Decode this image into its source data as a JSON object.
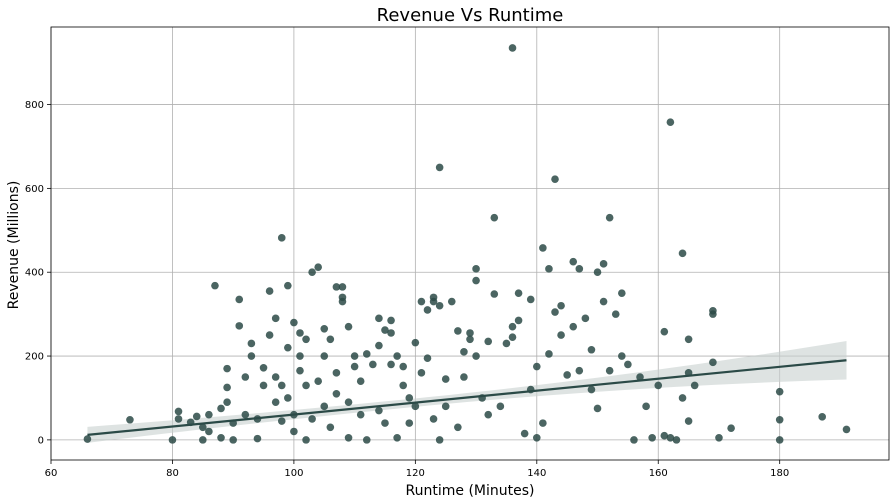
{
  "chart_data": {
    "type": "scatter",
    "title": "Revenue Vs Runtime",
    "xlabel": "Runtime (Minutes)",
    "ylabel": "Revenue (Millions)",
    "xlim": [
      60,
      198
    ],
    "ylim": [
      -48,
      985
    ],
    "xticks": [
      60,
      80,
      100,
      120,
      140,
      160,
      180
    ],
    "yticks": [
      0,
      200,
      400,
      600,
      800
    ],
    "grid": true,
    "point_color": "#2b4a47",
    "line_color": "#2b4a47",
    "band_color": "#c8d0cf",
    "regression": {
      "x": [
        66,
        191
      ],
      "y": [
        12,
        190
      ],
      "ci_halfwidth": [
        18,
        36
      ]
    },
    "series": [
      {
        "points": [
          [
            66,
            2
          ],
          [
            73,
            48
          ],
          [
            80,
            0
          ],
          [
            81,
            68
          ],
          [
            81,
            50
          ],
          [
            83,
            42
          ],
          [
            84,
            56
          ],
          [
            85,
            0
          ],
          [
            85,
            30
          ],
          [
            86,
            20
          ],
          [
            86,
            60
          ],
          [
            87,
            368
          ],
          [
            88,
            5
          ],
          [
            88,
            75
          ],
          [
            89,
            90
          ],
          [
            89,
            170
          ],
          [
            89,
            125
          ],
          [
            90,
            40
          ],
          [
            90,
            0
          ],
          [
            91,
            335
          ],
          [
            91,
            272
          ],
          [
            92,
            60
          ],
          [
            92,
            150
          ],
          [
            93,
            200
          ],
          [
            93,
            230
          ],
          [
            94,
            50
          ],
          [
            94,
            3
          ],
          [
            95,
            130
          ],
          [
            95,
            172
          ],
          [
            96,
            250
          ],
          [
            96,
            355
          ],
          [
            97,
            90
          ],
          [
            97,
            290
          ],
          [
            97,
            150
          ],
          [
            98,
            482
          ],
          [
            98,
            45
          ],
          [
            98,
            130
          ],
          [
            99,
            368
          ],
          [
            99,
            220
          ],
          [
            99,
            100
          ],
          [
            100,
            20
          ],
          [
            100,
            280
          ],
          [
            100,
            60
          ],
          [
            101,
            255
          ],
          [
            101,
            165
          ],
          [
            101,
            200
          ],
          [
            102,
            130
          ],
          [
            102,
            0
          ],
          [
            102,
            240
          ],
          [
            103,
            400
          ],
          [
            103,
            50
          ],
          [
            104,
            412
          ],
          [
            104,
            140
          ],
          [
            105,
            265
          ],
          [
            105,
            80
          ],
          [
            105,
            200
          ],
          [
            106,
            240
          ],
          [
            106,
            30
          ],
          [
            107,
            365
          ],
          [
            107,
            160
          ],
          [
            107,
            110
          ],
          [
            108,
            340
          ],
          [
            108,
            330
          ],
          [
            108,
            365
          ],
          [
            109,
            270
          ],
          [
            109,
            90
          ],
          [
            109,
            5
          ],
          [
            110,
            200
          ],
          [
            110,
            175
          ],
          [
            111,
            140
          ],
          [
            111,
            60
          ],
          [
            112,
            205
          ],
          [
            112,
            0
          ],
          [
            113,
            180
          ],
          [
            114,
            290
          ],
          [
            114,
            225
          ],
          [
            114,
            70
          ],
          [
            115,
            262
          ],
          [
            115,
            40
          ],
          [
            116,
            285
          ],
          [
            116,
            255
          ],
          [
            116,
            180
          ],
          [
            117,
            200
          ],
          [
            117,
            5
          ],
          [
            118,
            175
          ],
          [
            118,
            130
          ],
          [
            119,
            100
          ],
          [
            119,
            40
          ],
          [
            120,
            232
          ],
          [
            120,
            80
          ],
          [
            121,
            330
          ],
          [
            121,
            160
          ],
          [
            122,
            195
          ],
          [
            122,
            310
          ],
          [
            123,
            340
          ],
          [
            123,
            330
          ],
          [
            123,
            50
          ],
          [
            124,
            650
          ],
          [
            124,
            320
          ],
          [
            124,
            0
          ],
          [
            125,
            145
          ],
          [
            125,
            80
          ],
          [
            126,
            330
          ],
          [
            127,
            260
          ],
          [
            127,
            30
          ],
          [
            128,
            210
          ],
          [
            128,
            150
          ],
          [
            129,
            255
          ],
          [
            129,
            240
          ],
          [
            130,
            408
          ],
          [
            130,
            380
          ],
          [
            130,
            200
          ],
          [
            131,
            100
          ],
          [
            132,
            235
          ],
          [
            132,
            60
          ],
          [
            133,
            530
          ],
          [
            133,
            348
          ],
          [
            134,
            80
          ],
          [
            135,
            230
          ],
          [
            136,
            935
          ],
          [
            136,
            270
          ],
          [
            136,
            245
          ],
          [
            137,
            350
          ],
          [
            137,
            285
          ],
          [
            138,
            15
          ],
          [
            139,
            335
          ],
          [
            139,
            120
          ],
          [
            140,
            175
          ],
          [
            140,
            5
          ],
          [
            141,
            458
          ],
          [
            141,
            40
          ],
          [
            142,
            408
          ],
          [
            142,
            205
          ],
          [
            143,
            622
          ],
          [
            143,
            305
          ],
          [
            144,
            320
          ],
          [
            144,
            250
          ],
          [
            145,
            155
          ],
          [
            146,
            425
          ],
          [
            146,
            270
          ],
          [
            147,
            408
          ],
          [
            147,
            165
          ],
          [
            148,
            290
          ],
          [
            149,
            215
          ],
          [
            149,
            120
          ],
          [
            150,
            400
          ],
          [
            150,
            75
          ],
          [
            151,
            420
          ],
          [
            151,
            330
          ],
          [
            152,
            530
          ],
          [
            152,
            165
          ],
          [
            153,
            300
          ],
          [
            154,
            350
          ],
          [
            154,
            200
          ],
          [
            155,
            180
          ],
          [
            156,
            0
          ],
          [
            157,
            150
          ],
          [
            158,
            80
          ],
          [
            159,
            5
          ],
          [
            160,
            130
          ],
          [
            161,
            258
          ],
          [
            161,
            10
          ],
          [
            162,
            758
          ],
          [
            162,
            5
          ],
          [
            163,
            0
          ],
          [
            164,
            445
          ],
          [
            164,
            100
          ],
          [
            165,
            240
          ],
          [
            165,
            160
          ],
          [
            165,
            45
          ],
          [
            166,
            130
          ],
          [
            169,
            308
          ],
          [
            169,
            300
          ],
          [
            169,
            185
          ],
          [
            170,
            5
          ],
          [
            172,
            28
          ],
          [
            180,
            115
          ],
          [
            180,
            48
          ],
          [
            180,
            0
          ],
          [
            187,
            55
          ],
          [
            191,
            25
          ]
        ]
      }
    ]
  }
}
